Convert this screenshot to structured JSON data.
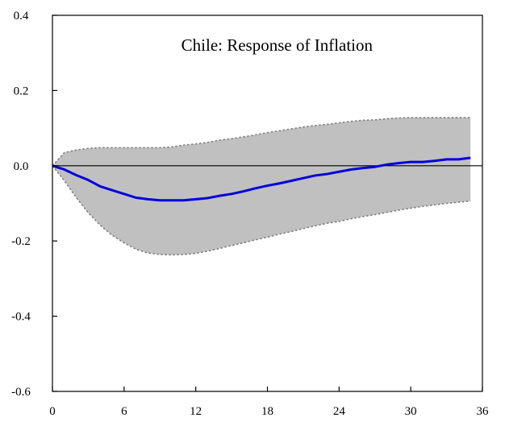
{
  "chart_data": {
    "type": "line",
    "title": "Chile: Response of Inflation",
    "xlabel": "",
    "ylabel": "",
    "xlim": [
      0,
      36
    ],
    "ylim": [
      -0.6,
      0.4
    ],
    "x_ticks": [
      0,
      6,
      12,
      18,
      24,
      30,
      36
    ],
    "y_ticks": [
      0.4,
      0.2,
      0.0,
      -0.2,
      -0.4,
      -0.6
    ],
    "y_tick_labels": [
      "0.4",
      "0.2",
      "0.0",
      "-0.2",
      "-0.4",
      "-0.6"
    ],
    "grid": false,
    "zero_line": true,
    "colors": {
      "response": "#0000dd",
      "band_fill": "#c0c0c0",
      "band_edge": "#808080",
      "axis": "#000000"
    },
    "x": [
      0,
      1,
      2,
      3,
      4,
      5,
      6,
      7,
      8,
      9,
      10,
      11,
      12,
      13,
      14,
      15,
      16,
      17,
      18,
      19,
      20,
      21,
      22,
      23,
      24,
      25,
      26,
      27,
      28,
      29,
      30,
      31,
      32,
      33,
      34,
      35
    ],
    "series": [
      {
        "role": "response",
        "values": [
          0,
          -0.01,
          -0.025,
          -0.038,
          -0.055,
          -0.065,
          -0.075,
          -0.085,
          -0.089,
          -0.092,
          -0.092,
          -0.092,
          -0.089,
          -0.086,
          -0.08,
          -0.075,
          -0.068,
          -0.06,
          -0.053,
          -0.047,
          -0.04,
          -0.033,
          -0.026,
          -0.022,
          -0.016,
          -0.01,
          -0.006,
          -0.003,
          0.003,
          0.007,
          0.01,
          0.01,
          0.013,
          0.017,
          0.017,
          0.021
        ]
      },
      {
        "role": "upper_band",
        "values": [
          0,
          0.035,
          0.042,
          0.046,
          0.048,
          0.048,
          0.048,
          0.048,
          0.048,
          0.048,
          0.05,
          0.055,
          0.058,
          0.062,
          0.068,
          0.072,
          0.077,
          0.082,
          0.088,
          0.093,
          0.098,
          0.103,
          0.107,
          0.11,
          0.114,
          0.118,
          0.121,
          0.122,
          0.125,
          0.127,
          0.128,
          0.128,
          0.128,
          0.128,
          0.128,
          0.128
        ]
      },
      {
        "role": "lower_band",
        "values": [
          0,
          -0.04,
          -0.085,
          -0.125,
          -0.158,
          -0.185,
          -0.205,
          -0.222,
          -0.232,
          -0.236,
          -0.237,
          -0.236,
          -0.233,
          -0.227,
          -0.22,
          -0.212,
          -0.205,
          -0.197,
          -0.19,
          -0.182,
          -0.175,
          -0.167,
          -0.16,
          -0.153,
          -0.148,
          -0.141,
          -0.135,
          -0.13,
          -0.124,
          -0.118,
          -0.113,
          -0.108,
          -0.104,
          -0.1,
          -0.097,
          -0.094
        ]
      }
    ]
  }
}
